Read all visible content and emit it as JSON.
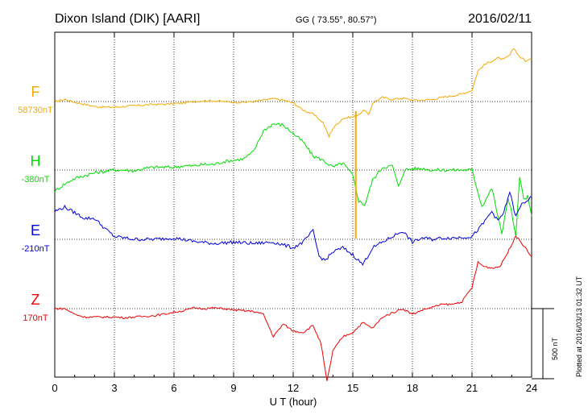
{
  "header": {
    "station": "Dixon Island (DIK)  [AARI]",
    "coords": "GG ( 73.55°,  80.57°)",
    "date": "2016/02/11"
  },
  "chart_data": {
    "type": "line",
    "xlabel": "U T (hour)",
    "xlim": [
      0,
      24
    ],
    "xticks": [
      0,
      3,
      6,
      9,
      12,
      15,
      18,
      21,
      24
    ],
    "grid": "dotted",
    "scale_bar": {
      "value": 500,
      "label": "500 nT"
    },
    "plotted_note": "Plotted at 2016/03/13 01:32 UT",
    "series": [
      {
        "name": "F",
        "base_label": "58730nT",
        "color": "#f5a800",
        "x": [
          0,
          0.5,
          1,
          1.5,
          2,
          2.5,
          3,
          3.5,
          4,
          4.5,
          5,
          5.5,
          6,
          6.5,
          7,
          7.5,
          8,
          8.5,
          9,
          9.5,
          10,
          10.5,
          11,
          11.5,
          12,
          12.5,
          13,
          13.5,
          13.8,
          14,
          14.5,
          15,
          15.3,
          15.6,
          15.8,
          16,
          16.5,
          17,
          17.5,
          18,
          18.5,
          19,
          19.5,
          20,
          20.5,
          21,
          21.3,
          21.6,
          22,
          22.3,
          22.6,
          22.9,
          23.1,
          23.4,
          23.7,
          24
        ],
        "y": [
          0,
          15,
          -5,
          -20,
          -35,
          -40,
          -40,
          -35,
          -30,
          -25,
          -20,
          -20,
          -15,
          -10,
          0,
          5,
          5,
          0,
          -5,
          -5,
          0,
          10,
          20,
          10,
          -10,
          -60,
          -90,
          -150,
          -250,
          -190,
          -120,
          -110,
          -90,
          -60,
          -100,
          -10,
          30,
          15,
          25,
          10,
          10,
          15,
          30,
          40,
          55,
          80,
          220,
          260,
          290,
          310,
          300,
          330,
          380,
          320,
          290,
          300
        ]
      },
      {
        "name": "H",
        "base_label": "-380nT",
        "color": "#00dd00",
        "x": [
          0,
          0.5,
          1,
          1.5,
          2,
          2.5,
          3,
          3.5,
          4,
          4.5,
          5,
          5.5,
          6,
          6.5,
          7,
          7.5,
          8,
          8.5,
          9,
          9.5,
          10,
          10.5,
          11,
          11.5,
          12,
          12.5,
          13,
          13.5,
          14,
          14.5,
          15,
          15.3,
          15.6,
          16,
          16.5,
          17,
          17.3,
          17.6,
          18,
          18.5,
          19,
          20,
          21,
          21.5,
          22,
          22.5,
          22.8,
          23,
          23.2,
          23.4,
          23.6,
          23.8,
          24
        ],
        "y": [
          -150,
          -100,
          -60,
          -40,
          -20,
          -10,
          0,
          0,
          -5,
          10,
          20,
          20,
          20,
          30,
          30,
          40,
          40,
          60,
          70,
          80,
          130,
          280,
          330,
          320,
          260,
          200,
          100,
          70,
          20,
          50,
          -40,
          -220,
          -250,
          -70,
          20,
          30,
          -120,
          0,
          10,
          10,
          0,
          0,
          0,
          -260,
          -130,
          -460,
          -200,
          -300,
          -480,
          -50,
          -210,
          -190,
          -330
        ]
      },
      {
        "name": "E",
        "base_label": "-210nT",
        "color": "#0000dd",
        "x": [
          0,
          0.5,
          1,
          1.5,
          2,
          2.5,
          3,
          3.5,
          4,
          5,
          6,
          7,
          8,
          9,
          10,
          11,
          12,
          12.5,
          13,
          13.3,
          13.6,
          14,
          14.5,
          15,
          15.5,
          16,
          16.5,
          17,
          17.5,
          18,
          18.5,
          19,
          19.5,
          20,
          21,
          21.5,
          22,
          22.3,
          22.6,
          22.9,
          23.2,
          23.5,
          23.8,
          24
        ],
        "y": [
          200,
          230,
          190,
          150,
          150,
          80,
          20,
          10,
          0,
          0,
          10,
          -15,
          -30,
          -20,
          -30,
          -20,
          -60,
          -20,
          60,
          -120,
          -150,
          -90,
          -60,
          -110,
          -180,
          -60,
          -20,
          20,
          60,
          -20,
          10,
          0,
          10,
          10,
          20,
          100,
          200,
          130,
          190,
          340,
          160,
          250,
          280,
          300
        ]
      },
      {
        "name": "Z",
        "base_label": "170nT",
        "color": "#ee0000",
        "x": [
          0,
          0.5,
          1,
          1.5,
          2,
          2.5,
          3,
          3.5,
          4,
          4.5,
          5,
          5.5,
          6,
          6.5,
          7,
          7.5,
          8,
          8.5,
          9,
          9.5,
          10,
          10.5,
          11,
          11.5,
          12,
          12.5,
          13,
          13.4,
          13.7,
          14,
          14.5,
          15,
          15.5,
          16,
          16.5,
          17,
          17.5,
          18,
          18.5,
          19,
          19.5,
          20,
          20.5,
          21,
          21.3,
          21.6,
          22,
          22.4,
          22.8,
          23.2,
          23.6,
          24
        ],
        "y": [
          0,
          0,
          -40,
          -60,
          -60,
          -60,
          -60,
          -65,
          -60,
          -55,
          -50,
          -40,
          -25,
          -15,
          5,
          0,
          5,
          0,
          -10,
          -15,
          -20,
          -40,
          -200,
          -110,
          -160,
          -170,
          -120,
          -250,
          -520,
          -300,
          -200,
          -170,
          -100,
          -140,
          -60,
          -30,
          0,
          -40,
          -10,
          10,
          30,
          30,
          50,
          150,
          330,
          300,
          290,
          300,
          400,
          520,
          450,
          370
        ]
      }
    ]
  }
}
